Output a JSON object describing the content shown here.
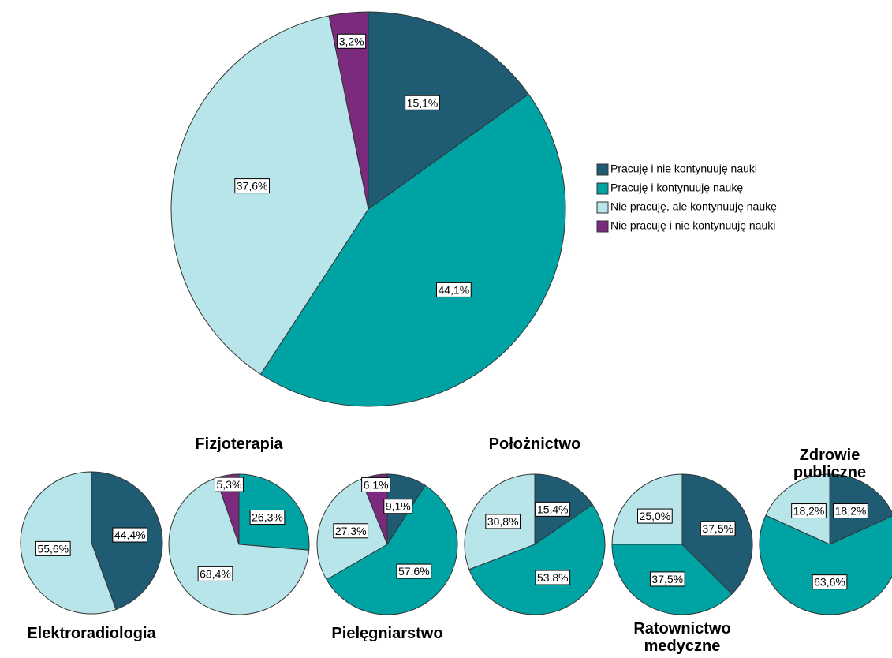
{
  "chart_data": [
    {
      "type": "pie",
      "categories": [
        "Pracuję i nie kontynuuję nauki",
        "Pracuję i kontynuuję naukę",
        "Nie pracuję, ale kontynuuję naukę",
        "Nie pracuję i nie kontynuuję nauki"
      ],
      "values": [
        15.1,
        44.1,
        37.6,
        3.2
      ],
      "value_labels": [
        "15,1%",
        "44,1%",
        "37,6%",
        "3,2%"
      ],
      "colors": [
        "#1f5b73",
        "#00a3a3",
        "#b7e5e9",
        "#7b2a7d"
      ],
      "legend": "right"
    },
    {
      "type": "pie",
      "title": "Elektroradiologia",
      "values": [
        44.4,
        55.6
      ],
      "value_labels": [
        "44,4%",
        "55,6%"
      ],
      "colors": [
        "#1f5b73",
        "#b7e5e9"
      ]
    },
    {
      "type": "pie",
      "title": "Fizjoterapia",
      "values": [
        26.3,
        68.4,
        5.3
      ],
      "value_labels": [
        "26,3%",
        "68,4%",
        "5,3%"
      ],
      "colors": [
        "#00a3a3",
        "#b7e5e9",
        "#7b2a7d"
      ]
    },
    {
      "type": "pie",
      "title": "Pielęgniarstwo",
      "values": [
        9.1,
        57.6,
        27.3,
        6.1
      ],
      "value_labels": [
        "9,1%",
        "57,6%",
        "27,3%",
        "6,1%"
      ],
      "colors": [
        "#1f5b73",
        "#00a3a3",
        "#b7e5e9",
        "#7b2a7d"
      ]
    },
    {
      "type": "pie",
      "title": "Położnictwo",
      "values": [
        15.4,
        53.8,
        30.8
      ],
      "value_labels": [
        "15,4%",
        "53,8%",
        "30,8%"
      ],
      "colors": [
        "#1f5b73",
        "#00a3a3",
        "#b7e5e9"
      ]
    },
    {
      "type": "pie",
      "title": "Ratownictwo medyczne",
      "values": [
        37.5,
        37.5,
        25.0
      ],
      "value_labels": [
        "37,5%",
        "37,5%",
        "25,0%"
      ],
      "colors": [
        "#1f5b73",
        "#00a3a3",
        "#b7e5e9"
      ]
    },
    {
      "type": "pie",
      "title": "Zdrowie publiczne",
      "values": [
        18.2,
        63.6,
        18.2
      ],
      "value_labels": [
        "18,2%",
        "63,6%",
        "18,2%"
      ],
      "colors": [
        "#1f5b73",
        "#00a3a3",
        "#b7e5e9"
      ]
    }
  ]
}
